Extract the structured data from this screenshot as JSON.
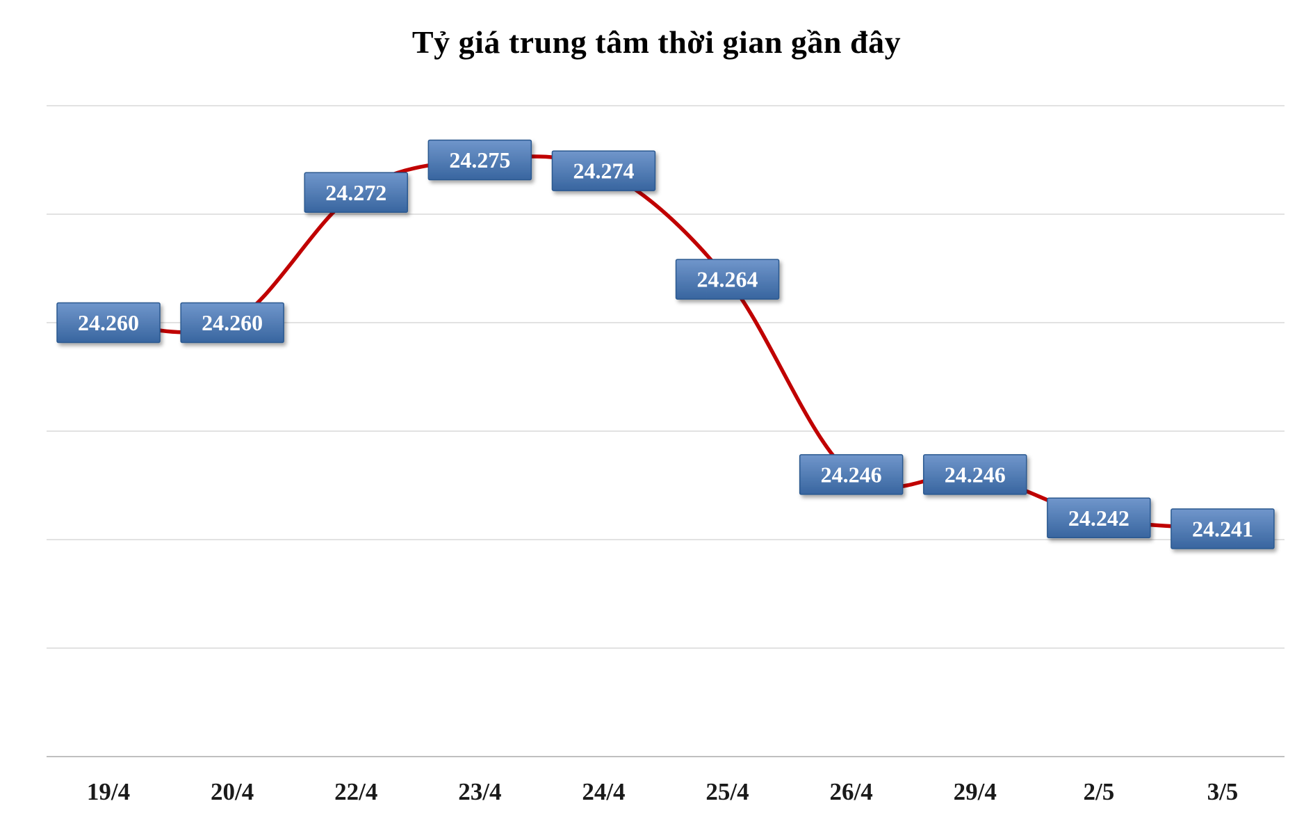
{
  "chart_data": {
    "type": "line",
    "title": "Tỷ giá trung tâm thời gian gần đây",
    "categories": [
      "19/4",
      "20/4",
      "22/4",
      "23/4",
      "24/4",
      "25/4",
      "26/4",
      "29/4",
      "2/5",
      "3/5"
    ],
    "values": [
      24260,
      24260,
      24272,
      24275,
      24274,
      24264,
      24246,
      24246,
      24242,
      24241
    ],
    "point_labels": [
      "24.260",
      "24.260",
      "24.272",
      "24.275",
      "24.274",
      "24.264",
      "24.246",
      "24.246",
      "24.242",
      "24.241"
    ],
    "ylim": [
      24220,
      24280
    ],
    "grid_step": 10,
    "grid": true,
    "legend_position": "none",
    "xlabel": "",
    "ylabel": "",
    "line_color": "#c00000",
    "line_width": 5.5,
    "label_box_gradient_top": "#7096cb",
    "label_box_gradient_bottom": "#38659f",
    "label_box_border": "#2a5globalThis",
    "label_box_border_color": "#2a5globalThis"
  },
  "style_colors": {
    "label_box_gradient_top": "#7096cb",
    "label_box_gradient_bottom": "#38659f",
    "label_box_border": "#29588f",
    "label_text": "#ffffff",
    "gridline": "#d9d9d9",
    "axis_line": "#bfbfbf",
    "tick_label": "#1a1a1a",
    "title_color": "#000000"
  }
}
